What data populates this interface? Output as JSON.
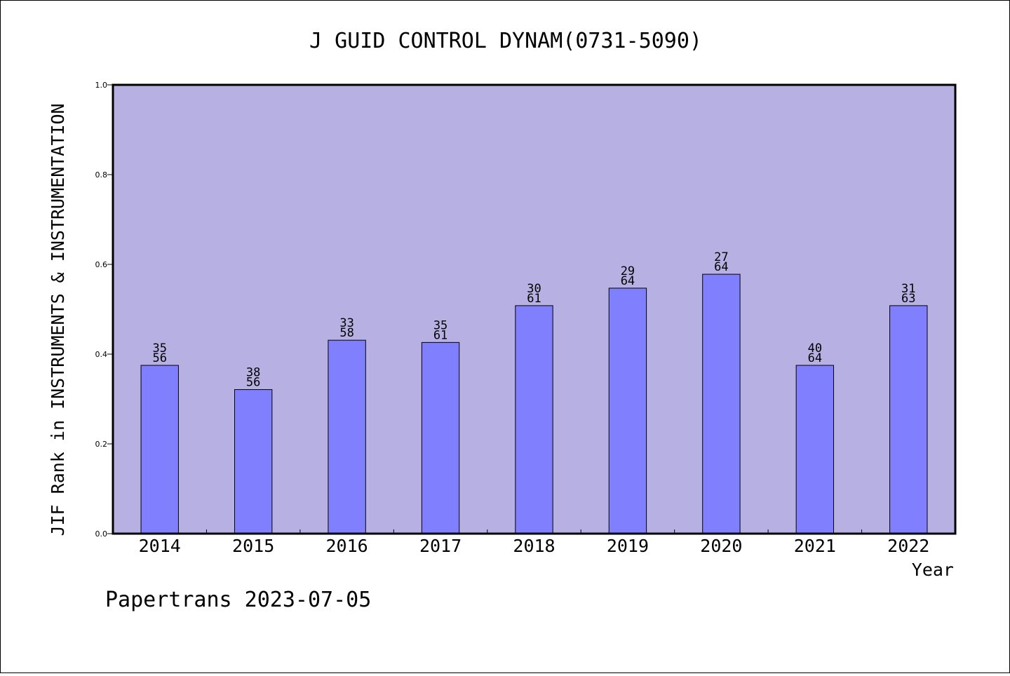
{
  "footer": "Papertrans 2023-07-05",
  "colors": {
    "plot_background": "#b7b1e3",
    "bar_fill": "#8080ff",
    "bar_stroke": "#000000",
    "axis": "#000000"
  },
  "chart_data": {
    "type": "bar",
    "title": "J GUID CONTROL DYNAM(0731-5090)",
    "xlabel": "Year",
    "ylabel": "JIF Rank in INSTRUMENTS & INSTRUMENTATION",
    "ylim": [
      0,
      1.0
    ],
    "yticks": [
      "0.0",
      "0.2",
      "0.4",
      "0.6",
      "0.8",
      "1.0"
    ],
    "grid": false,
    "categories": [
      "2014",
      "2015",
      "2016",
      "2017",
      "2018",
      "2019",
      "2020",
      "2021",
      "2022"
    ],
    "values": [
      0.375,
      0.321,
      0.431,
      0.426,
      0.508,
      0.547,
      0.578,
      0.375,
      0.508
    ],
    "labels": [
      {
        "rank": "35",
        "total": "56"
      },
      {
        "rank": "38",
        "total": "56"
      },
      {
        "rank": "33",
        "total": "58"
      },
      {
        "rank": "35",
        "total": "61"
      },
      {
        "rank": "30",
        "total": "61"
      },
      {
        "rank": "29",
        "total": "64"
      },
      {
        "rank": "27",
        "total": "64"
      },
      {
        "rank": "40",
        "total": "64"
      },
      {
        "rank": "31",
        "total": "63"
      }
    ]
  }
}
